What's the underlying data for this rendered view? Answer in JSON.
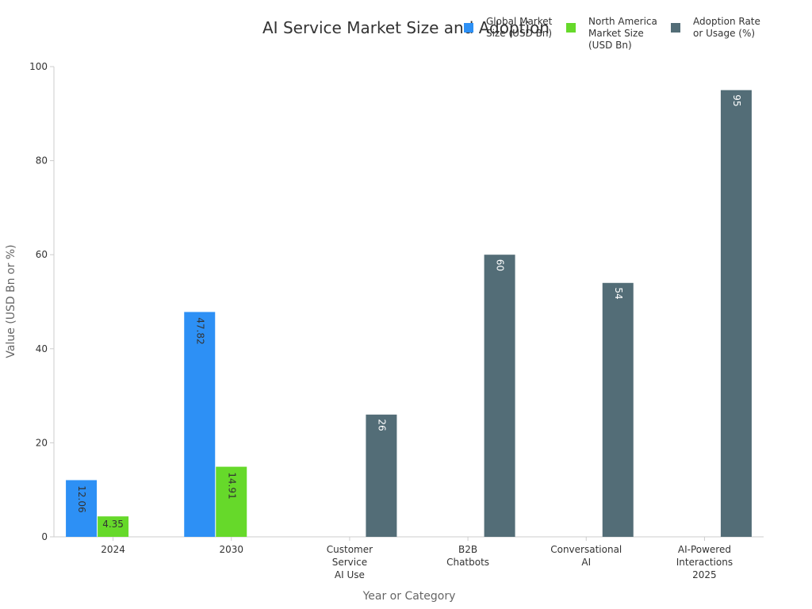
{
  "chart_data": {
    "type": "bar",
    "title": "AI Service Market Size and Adoption",
    "xlabel": "Year or Category",
    "ylabel": "Value (USD Bn or %)",
    "ylim": [
      0,
      100
    ],
    "yticks": [
      0,
      20,
      40,
      60,
      80,
      100
    ],
    "grid": false,
    "legend_position": "top-right",
    "categories": [
      [
        "2024"
      ],
      [
        "2030"
      ],
      [
        "Customer",
        "Service",
        "AI Use"
      ],
      [
        "B2B",
        "Chatbots"
      ],
      [
        "Conversational",
        "AI"
      ],
      [
        "AI-Powered",
        "Interactions",
        "2025"
      ]
    ],
    "series": [
      {
        "name": "Global Market Size (USD Bn)",
        "legend_lines": [
          "Global Market",
          "Size (USD Bn)"
        ],
        "color": "#2d90f5",
        "label_color": "#333333",
        "values": [
          12.06,
          47.82,
          null,
          null,
          null,
          null
        ],
        "labels": [
          "12.06",
          "47.82",
          "",
          "",
          "",
          ""
        ]
      },
      {
        "name": "North America Market Size (USD Bn)",
        "legend_lines": [
          "North America",
          "Market Size",
          "(USD Bn)"
        ],
        "color": "#66d92a",
        "label_color": "#333333",
        "values": [
          4.35,
          14.91,
          null,
          null,
          null,
          null
        ],
        "labels": [
          "4.35",
          "14.91",
          "",
          "",
          "",
          ""
        ]
      },
      {
        "name": "Adoption Rate or Usage (%)",
        "legend_lines": [
          "Adoption Rate",
          "or Usage (%)"
        ],
        "color": "#536d77",
        "label_color": "#ffffff",
        "values": [
          null,
          null,
          26,
          60,
          54,
          95
        ],
        "labels": [
          "",
          "",
          "26",
          "60",
          "54",
          "95"
        ]
      }
    ]
  }
}
